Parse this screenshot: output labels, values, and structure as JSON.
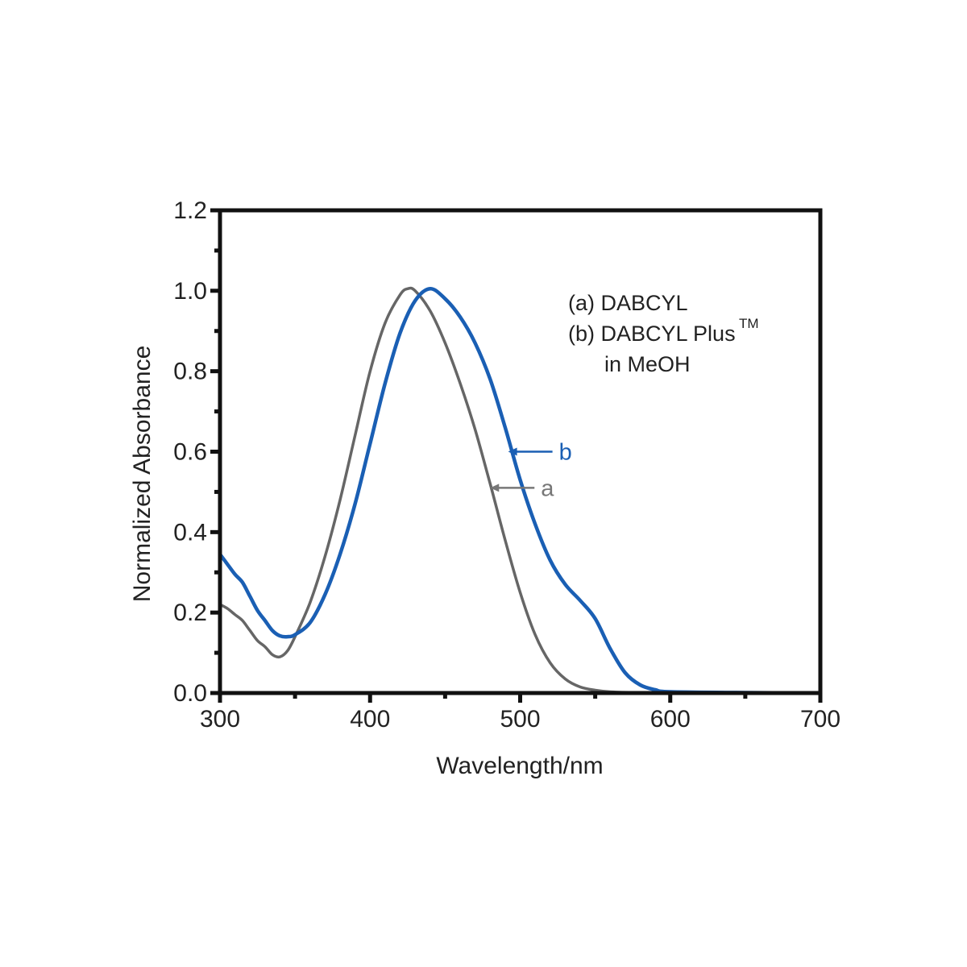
{
  "chart_data": {
    "type": "line",
    "xlabel": "Wavelength/nm",
    "ylabel": "Normalized Absorbance",
    "xlim": [
      300,
      700
    ],
    "ylim": [
      0.0,
      1.2
    ],
    "x_ticks": [
      "300",
      "400",
      "500",
      "600",
      "700"
    ],
    "y_ticks": [
      "0.0",
      "0.2",
      "0.4",
      "0.6",
      "0.8",
      "1.0",
      "1.2"
    ],
    "grid": false,
    "legend": {
      "placement": "top-right",
      "line1": "(a) DABCYL",
      "line2": "(b) DABCYL Plus",
      "line2_superscript": "TM",
      "line3": "in MeOH"
    },
    "series": [
      {
        "tag": "a",
        "color": "#666666",
        "tag_color": "#777777",
        "tag_point": [
          480,
          0.51
        ],
        "points": [
          [
            300,
            0.22
          ],
          [
            305,
            0.21
          ],
          [
            310,
            0.195
          ],
          [
            315,
            0.18
          ],
          [
            320,
            0.155
          ],
          [
            325,
            0.13
          ],
          [
            330,
            0.115
          ],
          [
            335,
            0.095
          ],
          [
            340,
            0.09
          ],
          [
            345,
            0.105
          ],
          [
            350,
            0.14
          ],
          [
            360,
            0.225
          ],
          [
            370,
            0.34
          ],
          [
            380,
            0.48
          ],
          [
            390,
            0.64
          ],
          [
            400,
            0.8
          ],
          [
            410,
            0.92
          ],
          [
            420,
            0.99
          ],
          [
            425,
            1.005
          ],
          [
            430,
            1.0
          ],
          [
            440,
            0.95
          ],
          [
            450,
            0.87
          ],
          [
            460,
            0.77
          ],
          [
            470,
            0.655
          ],
          [
            480,
            0.52
          ],
          [
            490,
            0.38
          ],
          [
            500,
            0.25
          ],
          [
            510,
            0.145
          ],
          [
            520,
            0.075
          ],
          [
            530,
            0.035
          ],
          [
            540,
            0.015
          ],
          [
            550,
            0.007
          ],
          [
            560,
            0.003
          ],
          [
            580,
            0.001
          ],
          [
            600,
            0.0
          ],
          [
            650,
            0.0
          ],
          [
            700,
            0.0
          ]
        ]
      },
      {
        "tag": "b",
        "color": "#1a5fb4",
        "tag_color": "#1a5fb4",
        "tag_point": [
          492,
          0.6
        ],
        "points": [
          [
            300,
            0.345
          ],
          [
            305,
            0.32
          ],
          [
            310,
            0.295
          ],
          [
            315,
            0.275
          ],
          [
            320,
            0.24
          ],
          [
            325,
            0.205
          ],
          [
            330,
            0.18
          ],
          [
            335,
            0.155
          ],
          [
            340,
            0.142
          ],
          [
            345,
            0.14
          ],
          [
            350,
            0.145
          ],
          [
            360,
            0.175
          ],
          [
            370,
            0.245
          ],
          [
            380,
            0.345
          ],
          [
            390,
            0.47
          ],
          [
            400,
            0.62
          ],
          [
            410,
            0.77
          ],
          [
            420,
            0.895
          ],
          [
            430,
            0.975
          ],
          [
            440,
            1.005
          ],
          [
            450,
            0.98
          ],
          [
            460,
            0.935
          ],
          [
            470,
            0.87
          ],
          [
            480,
            0.78
          ],
          [
            490,
            0.66
          ],
          [
            500,
            0.53
          ],
          [
            510,
            0.42
          ],
          [
            520,
            0.33
          ],
          [
            530,
            0.27
          ],
          [
            540,
            0.23
          ],
          [
            550,
            0.185
          ],
          [
            560,
            0.11
          ],
          [
            570,
            0.05
          ],
          [
            580,
            0.02
          ],
          [
            590,
            0.008
          ],
          [
            600,
            0.003
          ],
          [
            650,
            0.001
          ],
          [
            700,
            0.0
          ]
        ]
      }
    ]
  }
}
